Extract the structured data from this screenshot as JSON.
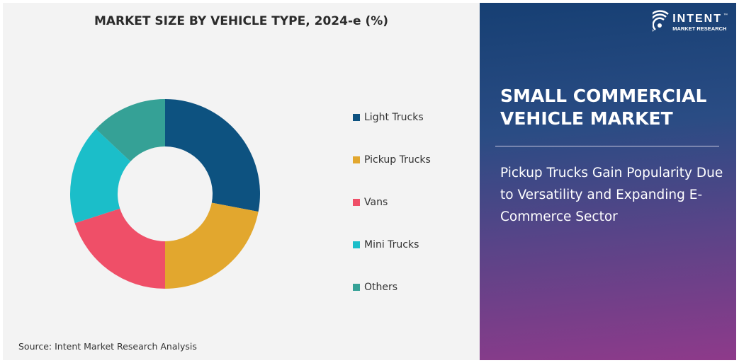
{
  "chart_data": {
    "type": "pie",
    "subtype": "donut",
    "title": "MARKET SIZE BY VEHICLE TYPE, 2024-e (%)",
    "categories": [
      "Light Trucks",
      "Pickup Trucks",
      "Vans",
      "Mini Trucks",
      "Others"
    ],
    "values": [
      28,
      22,
      20,
      17,
      13
    ],
    "colors": [
      "#0d5280",
      "#e2a72e",
      "#ef4f68",
      "#1bbec9",
      "#35a196"
    ],
    "legend": "right"
  },
  "source": "Source: Intent Market Research Analysis",
  "panel": {
    "logo": {
      "name": "INTENT",
      "sub": "MARKET RESEARCH",
      "tm": "™"
    },
    "headline": "SMALL COMMERCIAL VEHICLE MARKET",
    "subheadline": "Pickup Trucks Gain Popularity Due to Versatility and Expanding E-Commerce Sector"
  }
}
